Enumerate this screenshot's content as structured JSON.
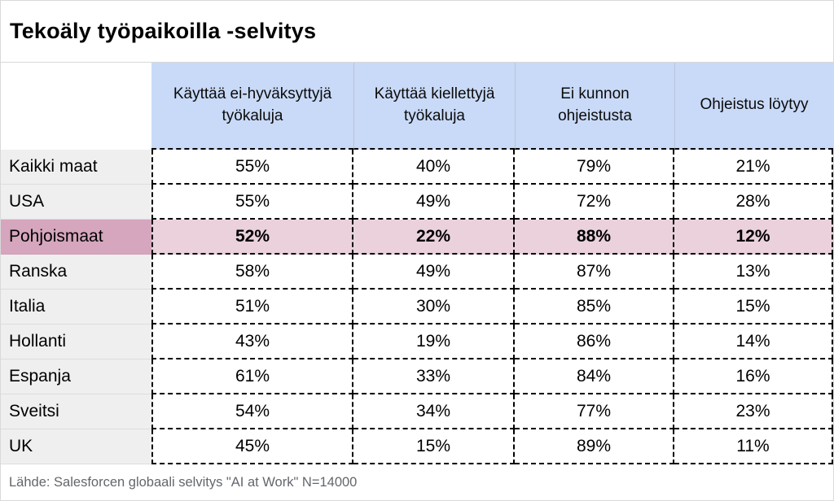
{
  "title": "Tekoäly työpaikoilla -selvitys",
  "colors": {
    "header_bg": "#c9daf8",
    "row_label_bg": "#efefef",
    "highlight_label_bg": "#d5a6bd",
    "highlight_cell_bg": "#ead1dc",
    "border_dashed": "#000000",
    "frame_border": "#d9d9d9",
    "footer_text": "#63676b"
  },
  "table": {
    "columns": [
      "Käyttää ei-hyväksyttyjä työkaluja",
      "Käyttää kiellettyjä työkaluja",
      "Ei kunnon ohjeistusta",
      "Ohjeistus löytyy"
    ],
    "rows": [
      {
        "label": "Kaikki maat",
        "values": [
          "55%",
          "40%",
          "79%",
          "21%"
        ],
        "highlight": false
      },
      {
        "label": "USA",
        "values": [
          "55%",
          "49%",
          "72%",
          "28%"
        ],
        "highlight": false
      },
      {
        "label": "Pohjoismaat",
        "values": [
          "52%",
          "22%",
          "88%",
          "12%"
        ],
        "highlight": true
      },
      {
        "label": "Ranska",
        "values": [
          "58%",
          "49%",
          "87%",
          "13%"
        ],
        "highlight": false
      },
      {
        "label": "Italia",
        "values": [
          "51%",
          "30%",
          "85%",
          "15%"
        ],
        "highlight": false
      },
      {
        "label": "Hollanti",
        "values": [
          "43%",
          "19%",
          "86%",
          "14%"
        ],
        "highlight": false
      },
      {
        "label": "Espanja",
        "values": [
          "61%",
          "33%",
          "84%",
          "16%"
        ],
        "highlight": false
      },
      {
        "label": "Sveitsi",
        "values": [
          "54%",
          "34%",
          "77%",
          "23%"
        ],
        "highlight": false
      },
      {
        "label": "UK",
        "values": [
          "45%",
          "15%",
          "89%",
          "11%"
        ],
        "highlight": false
      }
    ]
  },
  "footer": {
    "source": "Lähde: Salesforcen globaali selvitys \"AI at Work\" N=14000"
  },
  "chart_data": {
    "type": "table",
    "title": "Tekoäly työpaikoilla -selvitys",
    "categories": [
      "Kaikki maat",
      "USA",
      "Pohjoismaat",
      "Ranska",
      "Italia",
      "Hollanti",
      "Espanja",
      "Sveitsi",
      "UK"
    ],
    "series": [
      {
        "name": "Käyttää ei-hyväksyttyjä työkaluja",
        "values": [
          55,
          55,
          52,
          58,
          51,
          43,
          61,
          54,
          45
        ]
      },
      {
        "name": "Käyttää kiellettyjä työkaluja",
        "values": [
          40,
          49,
          22,
          49,
          30,
          19,
          33,
          34,
          15
        ]
      },
      {
        "name": "Ei kunnon ohjeistusta",
        "values": [
          79,
          72,
          88,
          87,
          85,
          86,
          84,
          77,
          89
        ]
      },
      {
        "name": "Ohjeistus löytyy",
        "values": [
          21,
          28,
          12,
          13,
          15,
          14,
          16,
          23,
          11
        ]
      }
    ],
    "unit": "%",
    "highlighted_row": "Pohjoismaat",
    "source": "Lähde: Salesforcen globaali selvitys \"AI at Work\" N=14000"
  }
}
